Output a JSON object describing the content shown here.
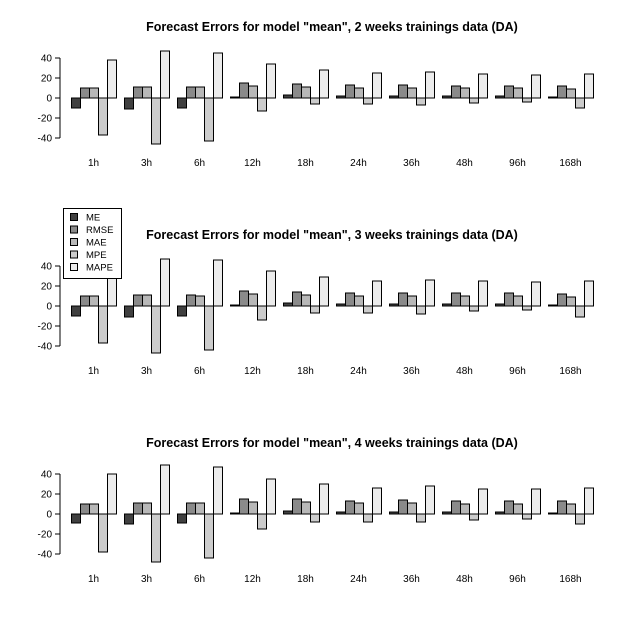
{
  "chart_data": [
    {
      "type": "bar",
      "title": "Forecast Errors for model \"mean\", 2 weeks trainings data (DA)",
      "xlabel": "",
      "ylabel": "",
      "ylim": [
        -45,
        50
      ],
      "yticks": [
        -40,
        -20,
        0,
        20,
        40
      ],
      "grid": false,
      "categories": [
        "1h",
        "3h",
        "6h",
        "12h",
        "18h",
        "24h",
        "36h",
        "48h",
        "96h",
        "168h"
      ],
      "series": [
        {
          "name": "ME",
          "values": [
            -10,
            -11,
            -10,
            1,
            3,
            2,
            2,
            2,
            2,
            1
          ]
        },
        {
          "name": "RMSE",
          "values": [
            10,
            11,
            11,
            15,
            14,
            13,
            13,
            12,
            12,
            12
          ]
        },
        {
          "name": "MAE",
          "values": [
            10,
            11,
            11,
            12,
            11,
            10,
            10,
            10,
            10,
            9
          ]
        },
        {
          "name": "MPE",
          "values": [
            -37,
            -46,
            -43,
            -13,
            -6,
            -6,
            -7,
            -5,
            -4,
            -10
          ]
        },
        {
          "name": "MAPE",
          "values": [
            38,
            47,
            45,
            34,
            28,
            25,
            26,
            24,
            23,
            24
          ]
        }
      ]
    },
    {
      "type": "bar",
      "title": "Forecast Errors for model \"mean\", 3 weeks trainings data (DA)",
      "xlabel": "",
      "ylabel": "",
      "ylim": [
        -45,
        50
      ],
      "yticks": [
        -40,
        -20,
        0,
        20,
        40
      ],
      "grid": false,
      "legend": "top-left",
      "categories": [
        "1h",
        "3h",
        "6h",
        "12h",
        "18h",
        "24h",
        "36h",
        "48h",
        "96h",
        "168h"
      ],
      "series": [
        {
          "name": "ME",
          "values": [
            -10,
            -11,
            -10,
            1,
            3,
            2,
            2,
            2,
            2,
            1
          ]
        },
        {
          "name": "RMSE",
          "values": [
            10,
            11,
            11,
            15,
            14,
            13,
            13,
            13,
            13,
            12
          ]
        },
        {
          "name": "MAE",
          "values": [
            10,
            11,
            10,
            12,
            11,
            10,
            10,
            10,
            10,
            9
          ]
        },
        {
          "name": "MPE",
          "values": [
            -37,
            -47,
            -44,
            -14,
            -7,
            -7,
            -8,
            -5,
            -4,
            -11
          ]
        },
        {
          "name": "MAPE",
          "values": [
            39,
            47,
            46,
            35,
            29,
            25,
            26,
            25,
            24,
            25
          ]
        }
      ]
    },
    {
      "type": "bar",
      "title": "Forecast Errors for model \"mean\", 4 weeks trainings data (DA)",
      "xlabel": "",
      "ylabel": "",
      "ylim": [
        -45,
        50
      ],
      "yticks": [
        -40,
        -20,
        0,
        20,
        40
      ],
      "grid": false,
      "categories": [
        "1h",
        "3h",
        "6h",
        "12h",
        "18h",
        "24h",
        "36h",
        "48h",
        "96h",
        "168h"
      ],
      "series": [
        {
          "name": "ME",
          "values": [
            -9,
            -10,
            -9,
            1,
            3,
            2,
            2,
            2,
            2,
            1
          ]
        },
        {
          "name": "RMSE",
          "values": [
            10,
            11,
            11,
            15,
            15,
            13,
            14,
            13,
            13,
            13
          ]
        },
        {
          "name": "MAE",
          "values": [
            10,
            11,
            11,
            12,
            12,
            11,
            11,
            10,
            10,
            10
          ]
        },
        {
          "name": "MPE",
          "values": [
            -38,
            -48,
            -44,
            -15,
            -8,
            -8,
            -8,
            -6,
            -5,
            -10
          ]
        },
        {
          "name": "MAPE",
          "values": [
            40,
            49,
            47,
            35,
            30,
            26,
            28,
            25,
            25,
            26
          ]
        }
      ]
    }
  ],
  "colors": {
    "ME": "#404040",
    "RMSE": "#8a8a8a",
    "MAE": "#b8b8b8",
    "MPE": "#cccccc",
    "MAPE": "#ececec",
    "stroke": "#000000"
  }
}
